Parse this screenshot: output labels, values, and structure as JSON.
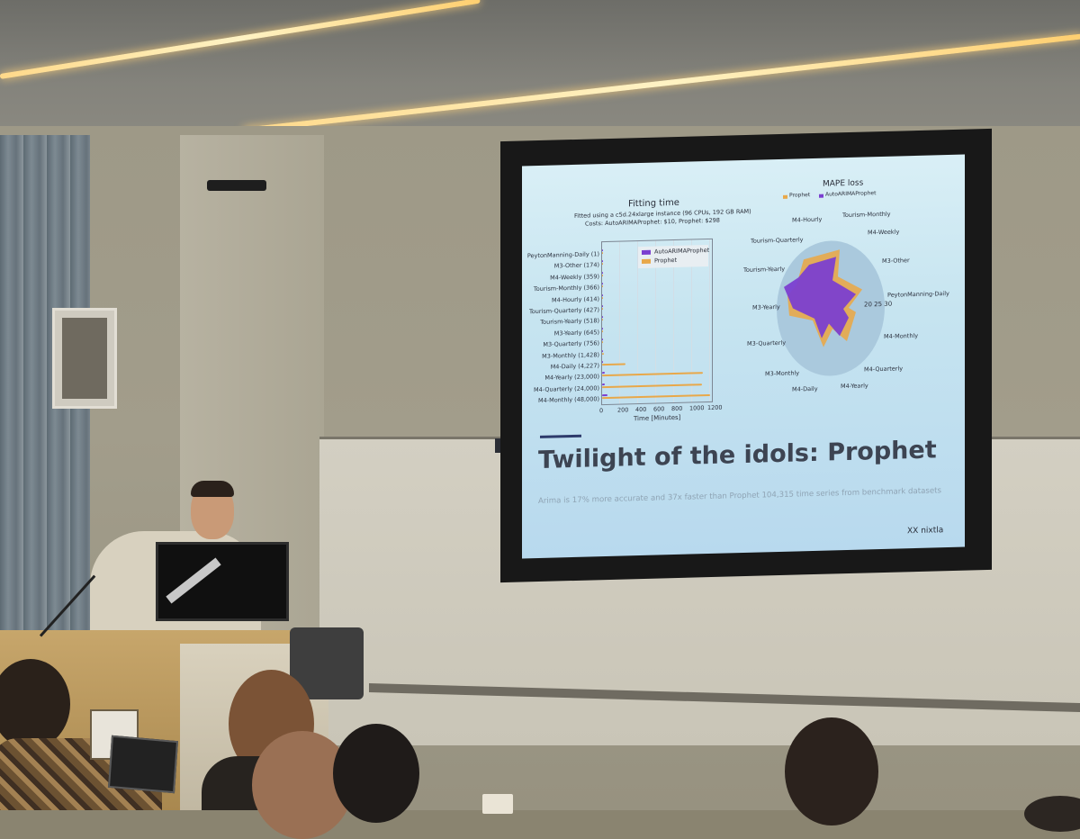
{
  "slide": {
    "chart_title": "Fitting time",
    "chart_subtitle_1": "Fitted using a c5d.24xlarge instance (96 CPUs, 192 GB RAM)",
    "chart_subtitle_2": "Costs: AutoARIMAProphet: $10, Prophet: $298",
    "legend_series_1": "AutoARIMAProphet",
    "legend_series_2": "Prophet",
    "x_axis_label": "Time [Minutes]",
    "x_ticks": [
      "0",
      "200",
      "400",
      "600",
      "800",
      "1000",
      "1200"
    ],
    "categories": [
      "PeytonManning-Daily (1)",
      "M3-Other (174)",
      "M4-Weekly (359)",
      "Tourism-Monthly (366)",
      "M4-Hourly (414)",
      "Tourism-Quarterly (427)",
      "Tourism-Yearly (518)",
      "M3-Yearly (645)",
      "M3-Quarterly (756)",
      "M3-Monthly (1,428)",
      "M4-Daily (4,227)",
      "M4-Yearly (23,000)",
      "M4-Quarterly (24,000)",
      "M4-Monthly (48,000)"
    ],
    "radar_title": "MAPE loss",
    "radar_legend_1": "Prophet",
    "radar_legend_2": "AutoARIMAProphet",
    "radar_labels": [
      "M4-Hourly",
      "Tourism-Monthly",
      "M4-Weekly",
      "Tourism-Quarterly",
      "M3-Other",
      "Tourism-Yearly",
      "PeytonManning-Daily",
      "M3-Yearly",
      "M4-Monthly",
      "M3-Quarterly",
      "M4-Quarterly",
      "M3-Monthly",
      "M4-Daily",
      "M4-Yearly"
    ],
    "radar_ticks": "20 25 30",
    "headline": "Twilight of the idols: Prophet",
    "subtext": "Arima is 17% more accurate and 37x faster than Prophet 104,315 time series from benchmark datasets",
    "logo": "XX nixtla"
  },
  "colors": {
    "autoarima": "#7b3fd0",
    "prophet": "#e8a84a",
    "slide_bg": "#c6e4f0",
    "headline": "#3d4452"
  },
  "chart_data": {
    "type": "bar",
    "categories": [
      "PeytonManning-Daily (1)",
      "M3-Other (174)",
      "M4-Weekly (359)",
      "Tourism-Monthly (366)",
      "M4-Hourly (414)",
      "Tourism-Quarterly (427)",
      "Tourism-Yearly (518)",
      "M3-Yearly (645)",
      "M3-Quarterly (756)",
      "M3-Monthly (1,428)",
      "M4-Daily (4,227)",
      "M4-Yearly (23,000)",
      "M4-Quarterly (24,000)",
      "M4-Monthly (48,000)"
    ],
    "series": [
      {
        "name": "AutoARIMAProphet",
        "values": [
          0,
          0,
          1,
          1,
          2,
          1,
          1,
          1,
          1,
          2,
          5,
          30,
          31,
          60
        ]
      },
      {
        "name": "Prophet",
        "values": [
          1,
          2,
          5,
          5,
          10,
          6,
          6,
          8,
          10,
          18,
          260,
          1120,
          1110,
          1200
        ]
      }
    ],
    "title": "Fitting time",
    "xlabel": "Time [Minutes]",
    "xlim": [
      0,
      1200
    ],
    "orientation": "horizontal"
  }
}
